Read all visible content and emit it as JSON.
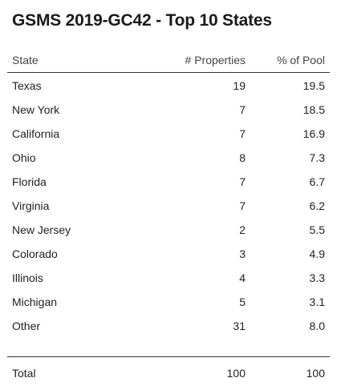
{
  "chart_data": {
    "type": "table",
    "title": "GSMS 2019-GC42 - Top 10 States",
    "columns": [
      "State",
      "# Properties",
      "% of Pool"
    ],
    "rows": [
      {
        "state": "Texas",
        "properties": "19",
        "pct": "19.5"
      },
      {
        "state": "New York",
        "properties": "7",
        "pct": "18.5"
      },
      {
        "state": "California",
        "properties": "7",
        "pct": "16.9"
      },
      {
        "state": "Ohio",
        "properties": "8",
        "pct": "7.3"
      },
      {
        "state": "Florida",
        "properties": "7",
        "pct": "6.7"
      },
      {
        "state": "Virginia",
        "properties": "7",
        "pct": "6.2"
      },
      {
        "state": "New Jersey",
        "properties": "2",
        "pct": "5.5"
      },
      {
        "state": "Colorado",
        "properties": "3",
        "pct": "4.9"
      },
      {
        "state": "Illinois",
        "properties": "4",
        "pct": "3.3"
      },
      {
        "state": "Michigan",
        "properties": "5",
        "pct": "3.1"
      },
      {
        "state": "Other",
        "properties": "31",
        "pct": "8.0"
      }
    ],
    "total": {
      "label": "Total",
      "properties": "100",
      "pct": "100"
    }
  }
}
